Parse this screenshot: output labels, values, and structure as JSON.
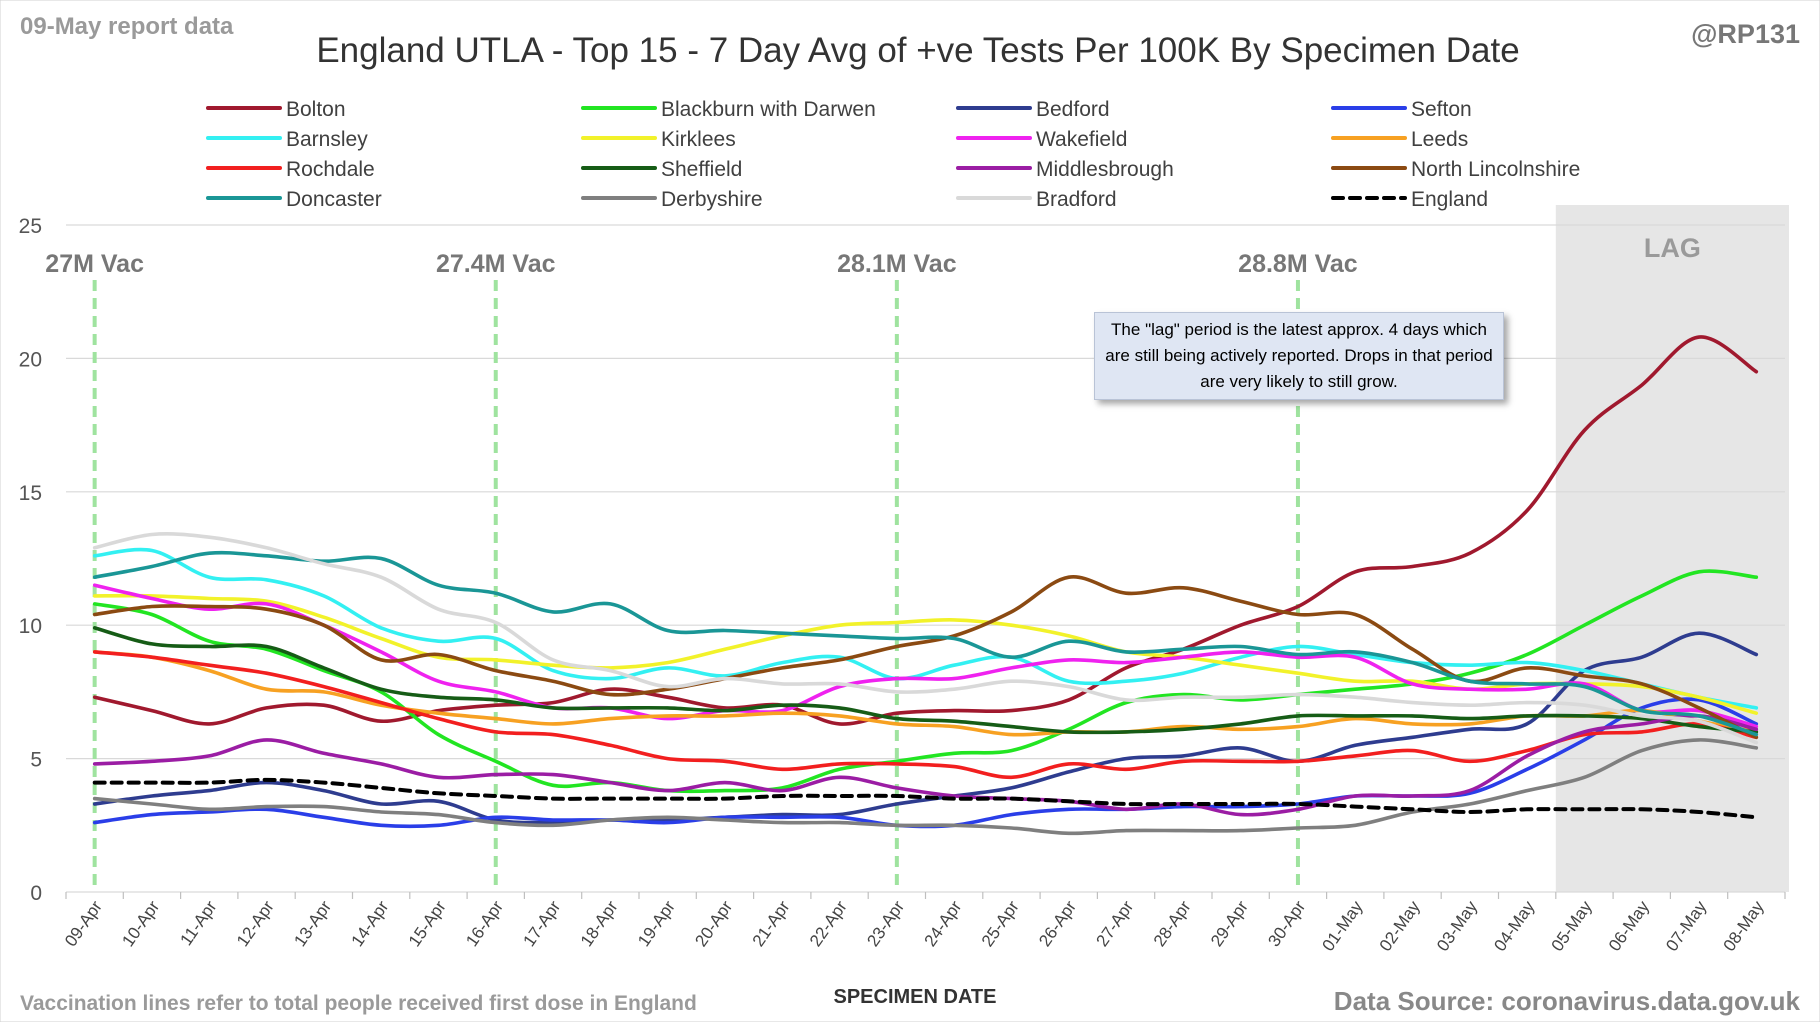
{
  "header": {
    "report_label": "09-May report data",
    "handle": "@RP131"
  },
  "footer": {
    "note": "Vaccination lines refer to total people received first dose in England",
    "source": "Data Source: coronavirus.data.gov.uk"
  },
  "lag_note": "The \"lag\" period is the latest approx. 4 days which are still being actively reported. Drops in that period are very likely to still grow.",
  "chart_data": {
    "type": "line",
    "title": "England UTLA - Top 15 - 7 Day Avg of +ve Tests Per 100K By Specimen Date",
    "xlabel": "SPECIMEN DATE",
    "ylabel": "",
    "ylim": [
      0,
      25
    ],
    "yticks": [
      0,
      5,
      10,
      15,
      20,
      25
    ],
    "grid": true,
    "legend_position": "top",
    "categories": [
      "09-Apr",
      "10-Apr",
      "11-Apr",
      "12-Apr",
      "13-Apr",
      "14-Apr",
      "15-Apr",
      "16-Apr",
      "17-Apr",
      "18-Apr",
      "19-Apr",
      "20-Apr",
      "21-Apr",
      "22-Apr",
      "23-Apr",
      "24-Apr",
      "25-Apr",
      "26-Apr",
      "27-Apr",
      "28-Apr",
      "29-Apr",
      "30-Apr",
      "01-May",
      "02-May",
      "03-May",
      "04-May",
      "05-May",
      "06-May",
      "07-May",
      "08-May"
    ],
    "lag_region": {
      "from": "05-May",
      "to": "08-May",
      "label": "LAG",
      "color": "#e6e6e6"
    },
    "vaccination_markers": [
      {
        "date": "09-Apr",
        "label": "27M Vac"
      },
      {
        "date": "16-Apr",
        "label": "27.4M Vac"
      },
      {
        "date": "23-Apr",
        "label": "28.1M Vac"
      },
      {
        "date": "30-Apr",
        "label": "28.8M Vac"
      }
    ],
    "series": [
      {
        "name": "Bolton",
        "color": "#a0192e",
        "values": [
          7.3,
          6.8,
          6.3,
          6.9,
          7.0,
          6.4,
          6.8,
          7.0,
          7.1,
          7.6,
          7.3,
          6.9,
          7.0,
          6.3,
          6.7,
          6.8,
          6.8,
          7.2,
          8.4,
          9.1,
          10.0,
          10.7,
          12.0,
          12.2,
          12.7,
          14.3,
          17.3,
          19.0,
          20.8,
          19.5
        ]
      },
      {
        "name": "Blackburn with Darwen",
        "color": "#22e522",
        "values": [
          10.8,
          10.4,
          9.4,
          9.1,
          8.3,
          7.5,
          5.9,
          4.9,
          4.0,
          4.1,
          3.8,
          3.8,
          3.9,
          4.6,
          4.9,
          5.2,
          5.3,
          6.1,
          7.1,
          7.4,
          7.2,
          7.4,
          7.6,
          7.8,
          8.2,
          8.9,
          10.0,
          11.1,
          12.0,
          11.8
        ]
      },
      {
        "name": "Bedford",
        "color": "#2e3c8f",
        "values": [
          3.3,
          3.6,
          3.8,
          4.1,
          3.8,
          3.3,
          3.4,
          2.7,
          2.6,
          2.7,
          2.7,
          2.8,
          2.9,
          2.9,
          3.3,
          3.6,
          3.9,
          4.5,
          5.0,
          5.1,
          5.4,
          4.9,
          5.5,
          5.8,
          6.1,
          6.3,
          8.3,
          8.8,
          9.7,
          8.9
        ]
      },
      {
        "name": "Sefton",
        "color": "#2a3ee8",
        "values": [
          2.6,
          2.9,
          3.0,
          3.1,
          2.8,
          2.5,
          2.5,
          2.8,
          2.7,
          2.7,
          2.6,
          2.8,
          2.8,
          2.8,
          2.5,
          2.5,
          2.9,
          3.1,
          3.1,
          3.2,
          3.2,
          3.3,
          3.6,
          3.6,
          3.7,
          4.6,
          5.7,
          6.9,
          7.2,
          6.3
        ]
      },
      {
        "name": "Barnsley",
        "color": "#33f0f2",
        "values": [
          12.6,
          12.8,
          11.8,
          11.7,
          11.1,
          9.9,
          9.4,
          9.5,
          8.3,
          8.0,
          8.4,
          8.1,
          8.6,
          8.8,
          8.0,
          8.5,
          8.8,
          7.9,
          7.9,
          8.2,
          8.8,
          9.2,
          8.9,
          8.6,
          8.5,
          8.6,
          8.3,
          7.8,
          7.3,
          6.9
        ]
      },
      {
        "name": "Kirklees",
        "color": "#f2f22a",
        "values": [
          11.1,
          11.1,
          11.0,
          10.9,
          10.3,
          9.5,
          8.8,
          8.7,
          8.5,
          8.4,
          8.6,
          9.1,
          9.6,
          10.0,
          10.1,
          10.2,
          10.0,
          9.6,
          9.0,
          8.8,
          8.5,
          8.2,
          7.9,
          7.9,
          7.6,
          7.8,
          7.8,
          7.7,
          7.3,
          6.7
        ]
      },
      {
        "name": "Wakefield",
        "color": "#ef22ef",
        "values": [
          11.5,
          11.0,
          10.6,
          10.8,
          10.0,
          9.0,
          7.9,
          7.5,
          6.9,
          6.9,
          6.5,
          6.8,
          6.8,
          7.7,
          8.0,
          8.0,
          8.4,
          8.7,
          8.6,
          8.8,
          9.0,
          8.8,
          8.8,
          7.8,
          7.6,
          7.6,
          7.8,
          6.8,
          6.8,
          6.2
        ]
      },
      {
        "name": "Leeds",
        "color": "#f7a122",
        "values": [
          9.0,
          8.8,
          8.3,
          7.6,
          7.5,
          7.0,
          6.7,
          6.5,
          6.3,
          6.5,
          6.6,
          6.6,
          6.7,
          6.6,
          6.3,
          6.2,
          5.9,
          6.0,
          6.0,
          6.2,
          6.1,
          6.2,
          6.5,
          6.3,
          6.3,
          6.6,
          6.6,
          6.8,
          6.4,
          6.0
        ]
      },
      {
        "name": "Rochdale",
        "color": "#f21f1f",
        "values": [
          9.0,
          8.8,
          8.5,
          8.2,
          7.7,
          7.1,
          6.5,
          6.0,
          5.9,
          5.5,
          5.0,
          4.9,
          4.6,
          4.8,
          4.8,
          4.7,
          4.3,
          4.8,
          4.6,
          4.9,
          4.9,
          4.9,
          5.1,
          5.3,
          4.9,
          5.3,
          5.9,
          6.0,
          6.3,
          5.8
        ]
      },
      {
        "name": "Sheffield",
        "color": "#165c16",
        "values": [
          9.9,
          9.3,
          9.2,
          9.2,
          8.4,
          7.6,
          7.3,
          7.2,
          6.9,
          6.9,
          6.9,
          6.8,
          7.0,
          6.9,
          6.5,
          6.4,
          6.2,
          6.0,
          6.0,
          6.1,
          6.3,
          6.6,
          6.6,
          6.6,
          6.5,
          6.6,
          6.6,
          6.5,
          6.2,
          6.0
        ]
      },
      {
        "name": "Middlesbrough",
        "color": "#9b1da4",
        "values": [
          4.8,
          4.9,
          5.1,
          5.7,
          5.2,
          4.8,
          4.3,
          4.4,
          4.4,
          4.1,
          3.8,
          4.1,
          3.8,
          4.3,
          3.9,
          3.6,
          3.5,
          3.4,
          3.1,
          3.3,
          2.9,
          3.1,
          3.6,
          3.6,
          3.8,
          5.1,
          6.0,
          6.3,
          6.6,
          6.1
        ]
      },
      {
        "name": "North Lincolnshire",
        "color": "#8b4a12",
        "values": [
          10.4,
          10.7,
          10.7,
          10.6,
          10.0,
          8.7,
          8.9,
          8.3,
          7.9,
          7.4,
          7.6,
          8.0,
          8.4,
          8.7,
          9.2,
          9.6,
          10.5,
          11.8,
          11.2,
          11.4,
          10.9,
          10.4,
          10.4,
          9.1,
          7.9,
          8.4,
          8.1,
          7.8,
          6.9,
          5.8
        ]
      },
      {
        "name": "Doncaster",
        "color": "#1a9696",
        "values": [
          11.8,
          12.2,
          12.7,
          12.6,
          12.4,
          12.5,
          11.5,
          11.2,
          10.5,
          10.8,
          9.8,
          9.8,
          9.7,
          9.6,
          9.5,
          9.5,
          8.8,
          9.4,
          9.0,
          9.1,
          9.2,
          8.9,
          9.0,
          8.6,
          7.9,
          7.8,
          7.7,
          6.8,
          6.6,
          5.9
        ]
      },
      {
        "name": "Derbyshire",
        "color": "#7f7f7f",
        "values": [
          3.5,
          3.3,
          3.1,
          3.2,
          3.2,
          3.0,
          2.9,
          2.6,
          2.5,
          2.7,
          2.8,
          2.7,
          2.6,
          2.6,
          2.5,
          2.5,
          2.4,
          2.2,
          2.3,
          2.3,
          2.3,
          2.4,
          2.5,
          3.0,
          3.3,
          3.8,
          4.3,
          5.3,
          5.7,
          5.4
        ]
      },
      {
        "name": "Bradford",
        "color": "#d9d9d9",
        "values": [
          12.9,
          13.4,
          13.3,
          12.9,
          12.3,
          11.8,
          10.6,
          10.1,
          8.7,
          8.3,
          7.7,
          8.0,
          7.8,
          7.8,
          7.5,
          7.6,
          7.9,
          7.7,
          7.2,
          7.3,
          7.3,
          7.4,
          7.3,
          7.1,
          7.0,
          7.1,
          7.0,
          6.6,
          6.4,
          5.6
        ]
      },
      {
        "name": "England",
        "color": "#000000",
        "dashed": true,
        "values": [
          4.1,
          4.1,
          4.1,
          4.2,
          4.1,
          3.9,
          3.7,
          3.6,
          3.5,
          3.5,
          3.5,
          3.5,
          3.6,
          3.6,
          3.6,
          3.5,
          3.5,
          3.4,
          3.3,
          3.3,
          3.3,
          3.3,
          3.2,
          3.1,
          3.0,
          3.1,
          3.1,
          3.1,
          3.0,
          2.8
        ]
      }
    ]
  }
}
